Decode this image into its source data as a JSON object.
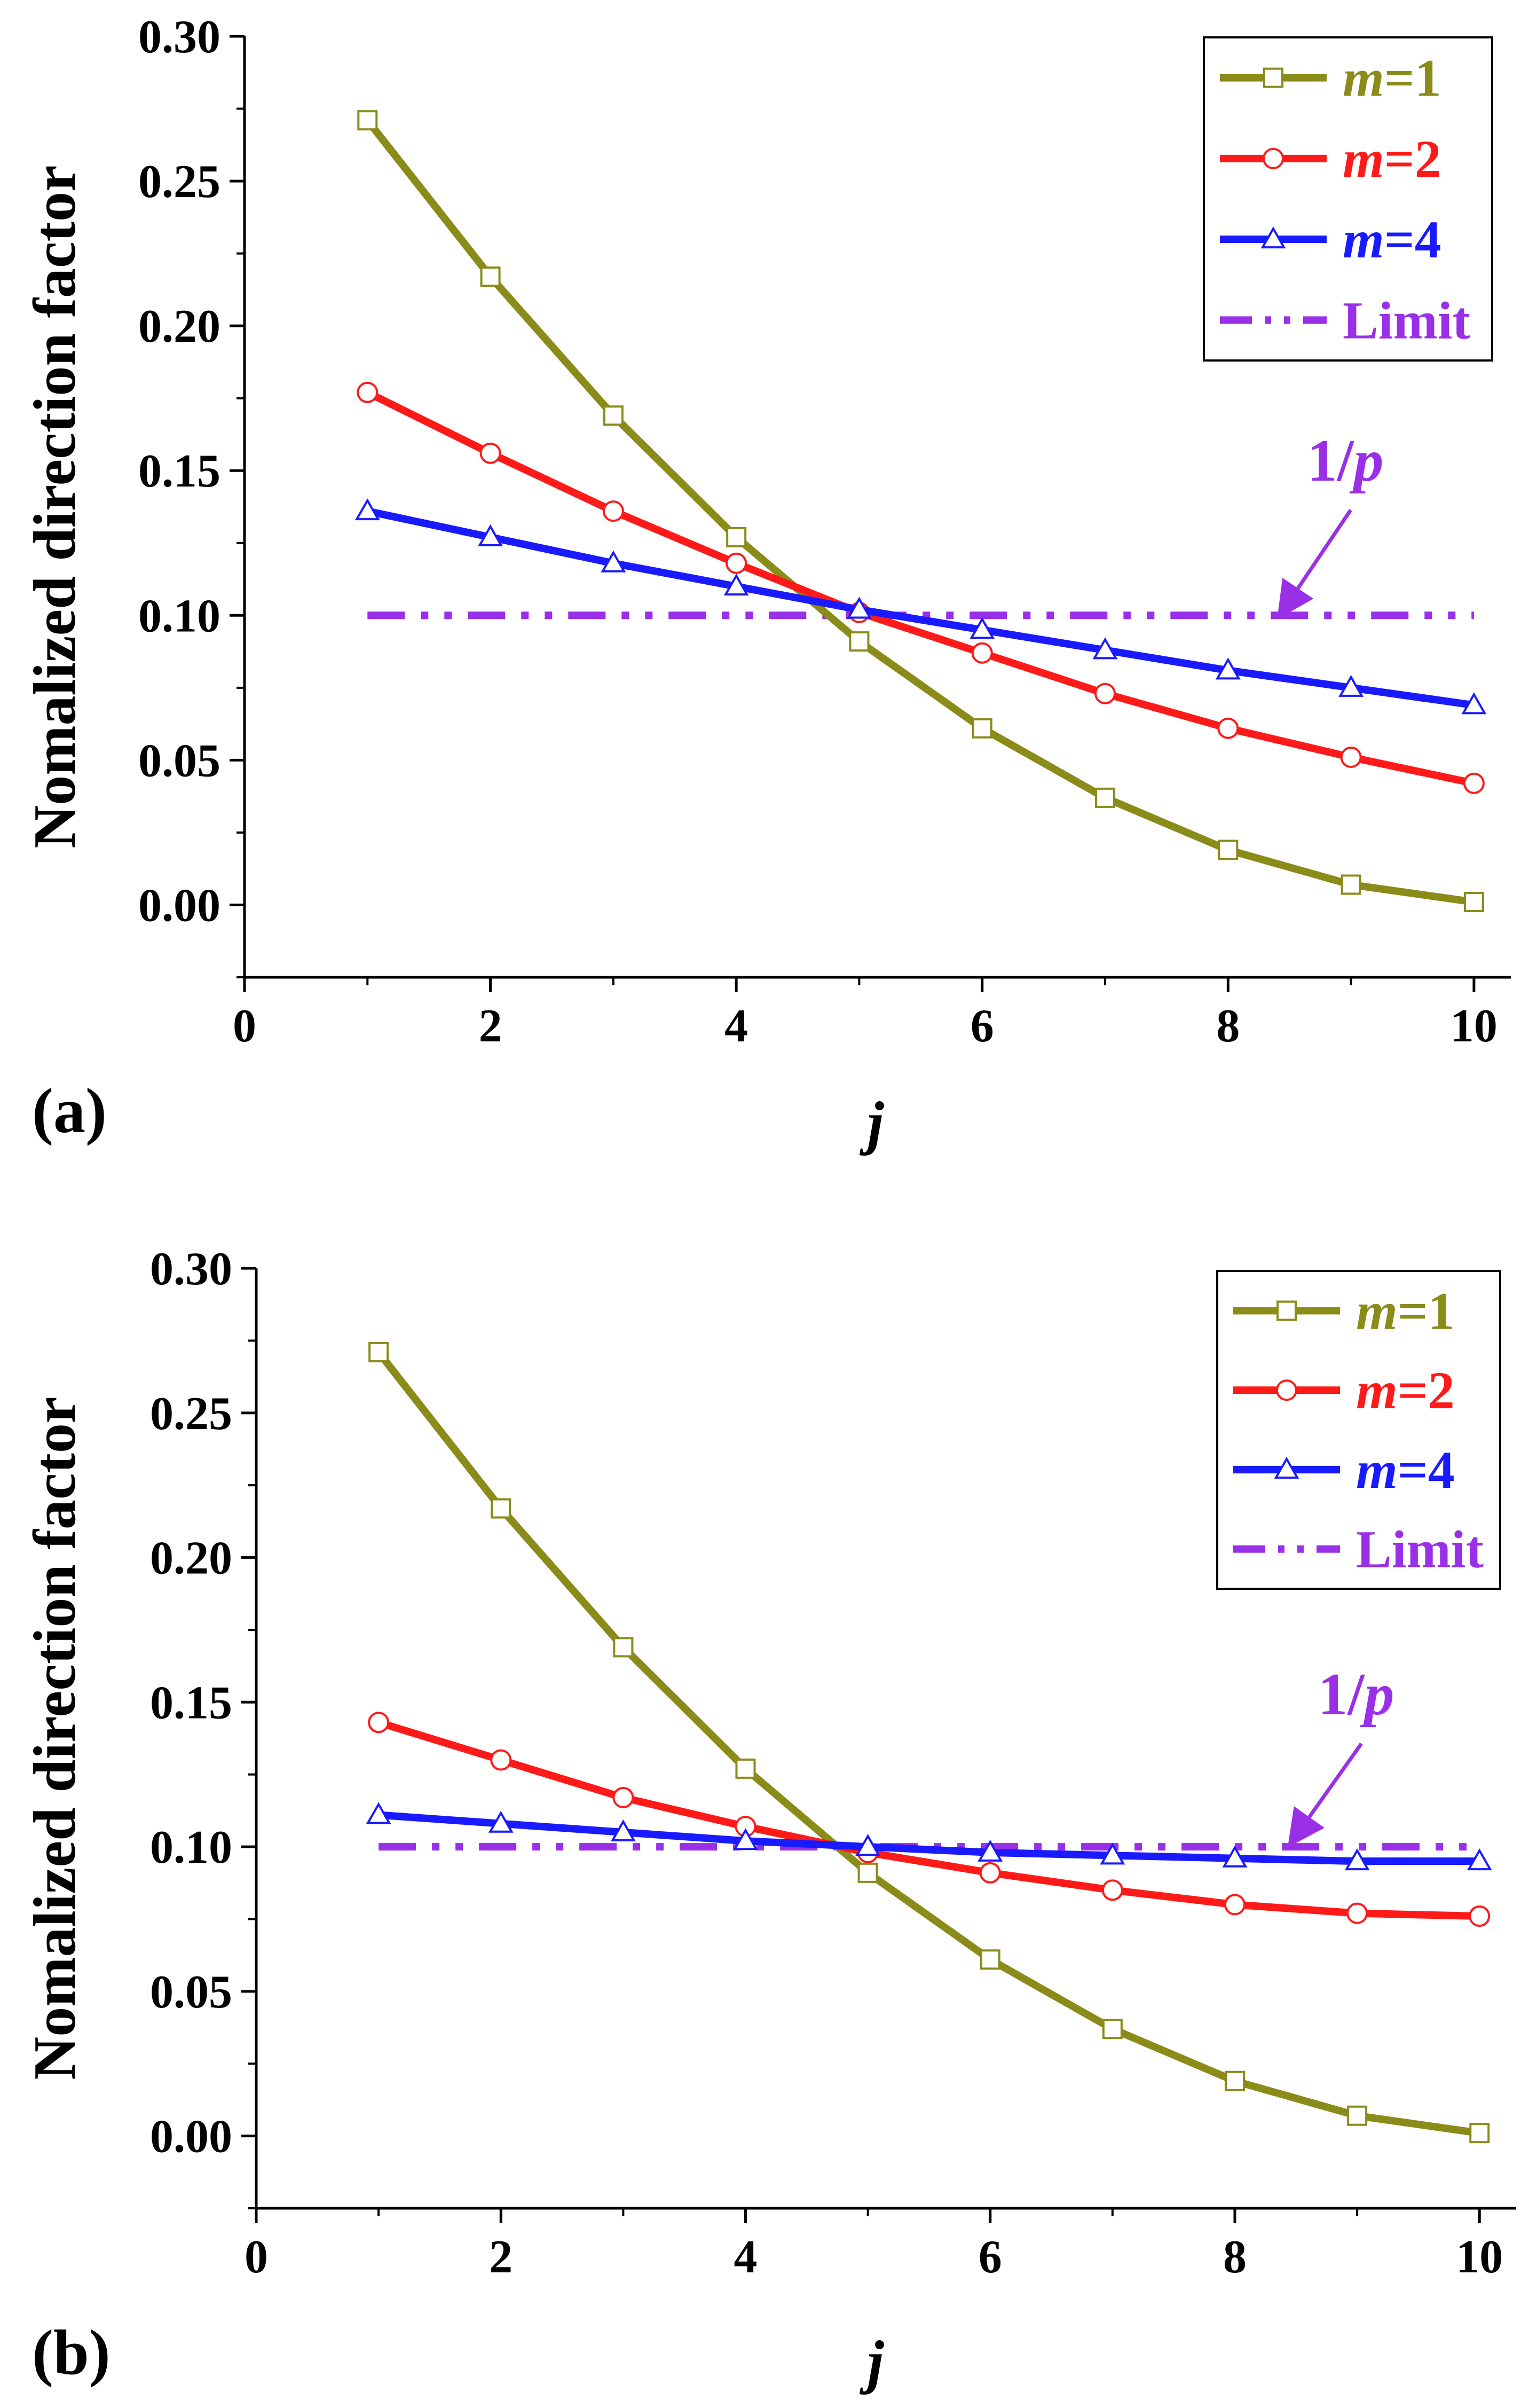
{
  "chart_data": [
    {
      "type": "line",
      "panel_label": "(a)",
      "xlabel": "j",
      "ylabel": "Nomalized direction factor",
      "xlim": [
        0,
        10.3
      ],
      "ylim": [
        -0.025,
        0.3
      ],
      "xticks": [
        0,
        2,
        4,
        6,
        8,
        10
      ],
      "xtick_labels": [
        "0",
        "2",
        "4",
        "6",
        "8",
        "10"
      ],
      "yticks": [
        0.0,
        0.05,
        0.1,
        0.15,
        0.2,
        0.25,
        0.3
      ],
      "ytick_labels": [
        "0.00",
        "0.05",
        "0.10",
        "0.15",
        "0.20",
        "0.25",
        "0.30"
      ],
      "x": [
        1,
        2,
        3,
        4,
        5,
        6,
        7,
        8,
        9,
        10
      ],
      "series": [
        {
          "name": "m=1",
          "var": "m",
          "eq": "=1",
          "color": "#8b8b1a",
          "marker": "square",
          "values": [
            0.271,
            0.217,
            0.169,
            0.127,
            0.091,
            0.061,
            0.037,
            0.019,
            0.007,
            0.001
          ]
        },
        {
          "name": "m=2",
          "var": "m",
          "eq": "=2",
          "color": "#ff1a1a",
          "marker": "circle",
          "values": [
            0.177,
            0.156,
            0.136,
            0.118,
            0.101,
            0.087,
            0.073,
            0.061,
            0.051,
            0.042
          ]
        },
        {
          "name": "m=4",
          "var": "m",
          "eq": "=4",
          "color": "#1a1aff",
          "marker": "triangle",
          "values": [
            0.136,
            0.127,
            0.118,
            0.11,
            0.102,
            0.095,
            0.088,
            0.081,
            0.075,
            0.069
          ]
        },
        {
          "name": "Limit",
          "var": "",
          "eq": "Limit",
          "color": "#9a2fe8",
          "marker": "none",
          "dash": "dashdotdot",
          "values": [
            0.1,
            0.1,
            0.1,
            0.1,
            0.1,
            0.1,
            0.1,
            0.1,
            0.1,
            0.1
          ]
        }
      ],
      "legend_position": "top-right",
      "annotation": {
        "text_prefix": "1/",
        "text_var": "p",
        "points_to": [
          8.2,
          0.1
        ]
      }
    },
    {
      "type": "line",
      "panel_label": "(b)",
      "xlabel": "j",
      "ylabel": "Nomalized direction factor",
      "xlim": [
        0,
        10.3
      ],
      "ylim": [
        -0.025,
        0.3
      ],
      "xticks": [
        0,
        2,
        4,
        6,
        8,
        10
      ],
      "xtick_labels": [
        "0",
        "2",
        "4",
        "6",
        "8",
        "10"
      ],
      "yticks": [
        0.0,
        0.05,
        0.1,
        0.15,
        0.2,
        0.25,
        0.3
      ],
      "ytick_labels": [
        "0.00",
        "0.05",
        "0.10",
        "0.15",
        "0.20",
        "0.25",
        "0.30"
      ],
      "x": [
        1,
        2,
        3,
        4,
        5,
        6,
        7,
        8,
        9,
        10
      ],
      "series": [
        {
          "name": "m=1",
          "var": "m",
          "eq": "=1",
          "color": "#8b8b1a",
          "marker": "square",
          "values": [
            0.271,
            0.217,
            0.169,
            0.127,
            0.091,
            0.061,
            0.037,
            0.019,
            0.007,
            0.001
          ]
        },
        {
          "name": "m=2",
          "var": "m",
          "eq": "=2",
          "color": "#ff1a1a",
          "marker": "circle",
          "values": [
            0.143,
            0.13,
            0.117,
            0.107,
            0.098,
            0.091,
            0.085,
            0.08,
            0.077,
            0.076
          ]
        },
        {
          "name": "m=4",
          "var": "m",
          "eq": "=4",
          "color": "#1a1aff",
          "marker": "triangle",
          "values": [
            0.111,
            0.108,
            0.105,
            0.102,
            0.1,
            0.098,
            0.097,
            0.096,
            0.095,
            0.095
          ]
        },
        {
          "name": "Limit",
          "var": "",
          "eq": "Limit",
          "color": "#9a2fe8",
          "marker": "none",
          "dash": "dashdotdot",
          "values": [
            0.1,
            0.1,
            0.1,
            0.1,
            0.1,
            0.1,
            0.1,
            0.1,
            0.1,
            0.1
          ]
        }
      ],
      "legend_position": "top-right",
      "annotation": {
        "text_prefix": "1/",
        "text_var": "p",
        "points_to": [
          8.2,
          0.1
        ]
      }
    }
  ]
}
